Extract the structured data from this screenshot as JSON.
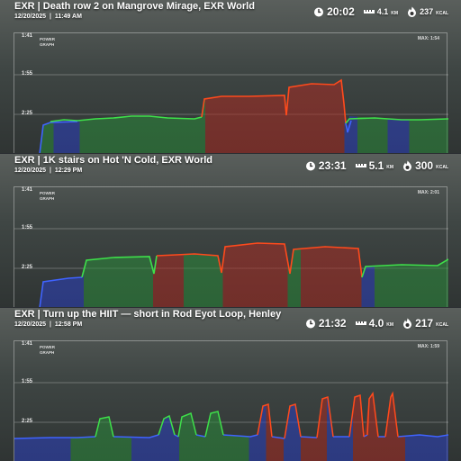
{
  "panels": [
    {
      "title": "EXR | Death row 2 on Mangrove Mirage, EXR World",
      "date": "12/20/2025",
      "time": "11:49 AM",
      "duration": "20:02",
      "distance": "4.1",
      "distance_unit": "KM",
      "calories": "237",
      "calories_unit": "KCAL",
      "graph_title_1": "POWER",
      "graph_title_2": "GRAPH",
      "max_label": "MAX: 1:54",
      "y_ticks": [
        "1:41",
        "1:55",
        "2:25"
      ]
    },
    {
      "title": "EXR | 1K stairs on Hot 'N Cold, EXR World",
      "date": "12/20/2025",
      "time": "12:29 PM",
      "duration": "23:31",
      "distance": "5.1",
      "distance_unit": "KM",
      "calories": "300",
      "calories_unit": "KCAL",
      "graph_title_1": "POWER",
      "graph_title_2": "GRAPH",
      "max_label": "MAX: 2:01",
      "y_ticks": [
        "1:41",
        "1:55",
        "2:25"
      ]
    },
    {
      "title": "EXR | Turn up the HIIT — short in Rod Eyot Loop, Henley",
      "date": "12/20/2025",
      "time": "12:58 PM",
      "duration": "21:32",
      "distance": "4.0",
      "distance_unit": "KM",
      "calories": "217",
      "calories_unit": "KCAL",
      "graph_title_1": "POWER",
      "graph_title_2": "GRAPH",
      "max_label": "MAX: 1:59",
      "y_ticks": [
        "1:41",
        "1:55",
        "2:25"
      ]
    }
  ],
  "icons": {
    "duration": "stopwatch-icon",
    "distance": "ruler-icon",
    "calories": "flame-icon"
  },
  "colors": {
    "low": "#3f63ff",
    "mid": "#3ee04a",
    "high": "#ff4a1c"
  }
}
